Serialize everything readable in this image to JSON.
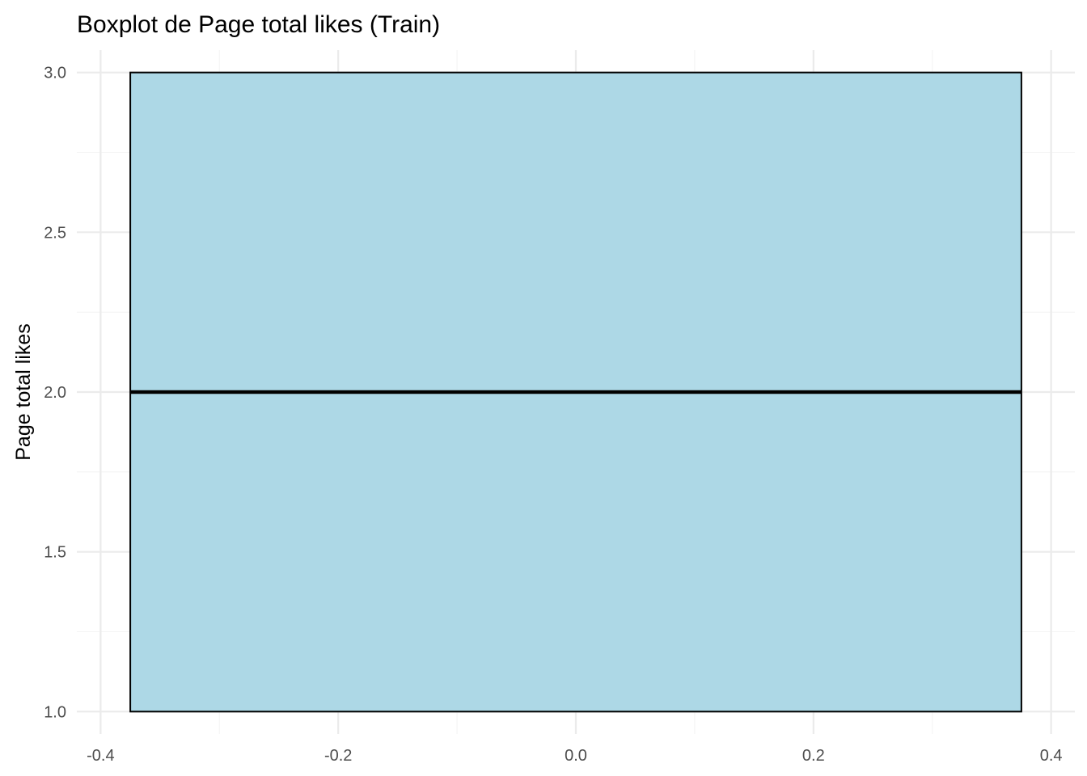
{
  "chart_data": {
    "type": "boxplot",
    "title": "Boxplot de Page total likes (Train)",
    "xlabel": "",
    "ylabel": "Page total likes",
    "xlim": [
      -0.42,
      0.42
    ],
    "ylim": [
      0.93,
      3.07
    ],
    "x_ticks": [
      -0.4,
      -0.2,
      0.0,
      0.2,
      0.4
    ],
    "x_tick_labels": [
      "-0.4",
      "-0.2",
      "0.0",
      "0.2",
      "0.4"
    ],
    "x_minor_ticks": [
      -0.3,
      -0.1,
      0.1,
      0.3
    ],
    "y_ticks": [
      1.0,
      1.5,
      2.0,
      2.5,
      3.0
    ],
    "y_tick_labels": [
      "1.0",
      "1.5",
      "2.0",
      "2.5",
      "3.0"
    ],
    "y_minor_ticks": [
      1.25,
      1.75,
      2.25,
      2.75
    ],
    "grid": true,
    "legend": "none",
    "box": {
      "x_min": -0.375,
      "x_max": 0.375,
      "lower_whisker": 1.0,
      "q1": 1.0,
      "median": 2.0,
      "q3": 3.0,
      "upper_whisker": 3.0,
      "fill": "#ADD8E6",
      "stroke": "#000000"
    },
    "grid_major_color": "#EBEBEB",
    "grid_minor_color": "#F4F4F4"
  }
}
